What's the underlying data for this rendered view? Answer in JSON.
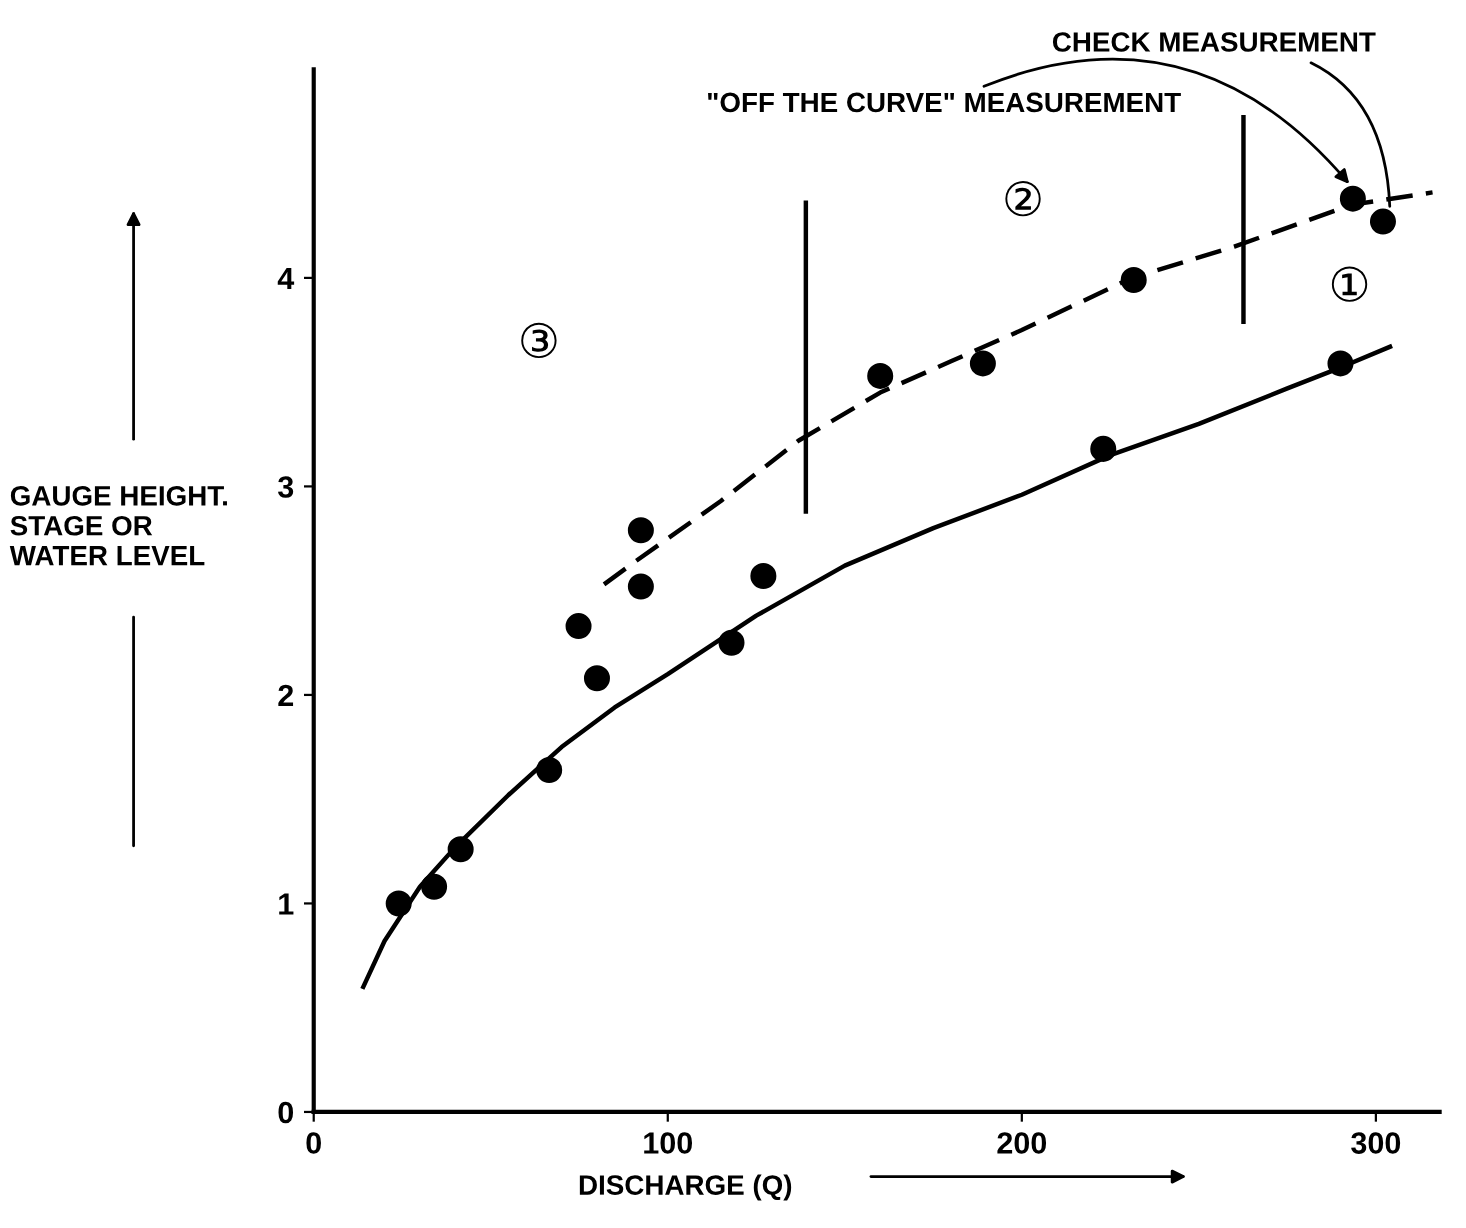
{
  "chart_data": {
    "type": "scatter",
    "xlabel": "DISCHARGE (Q)",
    "ylabel": "GAUGE HEIGHT.\nSTAGE OR\nWATER LEVEL",
    "xlim": [
      0,
      318
    ],
    "ylim": [
      0,
      5
    ],
    "xticks": [
      0,
      100,
      200,
      300
    ],
    "yticks": [
      0,
      1,
      2,
      3,
      4
    ],
    "grid": false,
    "marker": "circle",
    "series": [
      {
        "color": "#000000",
        "x": [
          24,
          34,
          41.5,
          66.5,
          74.8,
          80,
          92.4,
          92.4,
          118,
          127,
          160,
          189,
          223,
          231.6,
          290,
          293.5,
          302
        ],
        "values": [
          1.0,
          1.08,
          1.26,
          1.64,
          2.33,
          2.08,
          2.79,
          2.52,
          2.25,
          2.57,
          3.53,
          3.59,
          3.18,
          3.99,
          3.59,
          4.38,
          4.27
        ]
      },
      {
        "type": "line",
        "color": "#000000",
        "marker": "none",
        "line_style": "solid",
        "x": [
          14,
          20,
          30,
          40,
          55,
          70,
          85,
          100,
          125,
          150,
          175,
          200,
          225,
          250,
          275,
          290,
          304
        ],
        "values": [
          0.6,
          0.82,
          1.08,
          1.27,
          1.52,
          1.75,
          1.94,
          2.1,
          2.38,
          2.62,
          2.8,
          2.96,
          3.15,
          3.3,
          3.47,
          3.57,
          3.67
        ]
      },
      {
        "type": "line",
        "color": "#000000",
        "marker": "none",
        "line_style": "dashed",
        "x": [
          82,
          90,
          100,
          115,
          137,
          160,
          180,
          200,
          231,
          260,
          293,
          316
        ],
        "values": [
          2.53,
          2.63,
          2.75,
          2.93,
          3.22,
          3.45,
          3.6,
          3.75,
          4.0,
          4.15,
          4.35,
          4.41
        ]
      },
      {
        "type": "line",
        "color": "#000000",
        "marker": "none",
        "line_style": "solid",
        "x": [
          139,
          139
        ],
        "values": [
          2.88,
          4.36
        ]
      },
      {
        "type": "line",
        "color": "#000000",
        "marker": "none",
        "line_style": "solid",
        "x": [
          262.6,
          262.6
        ],
        "values": [
          3.79,
          4.77
        ]
      }
    ],
    "annotations": [
      "③",
      "②",
      "①",
      {
        "text": "\"OFF THE CURVE\" MEASUREMENT",
        "x": 293.5,
        "y": 4.38
      },
      {
        "text": "CHECK MEASUREMENT",
        "x": 302,
        "y": 4.27
      }
    ]
  }
}
